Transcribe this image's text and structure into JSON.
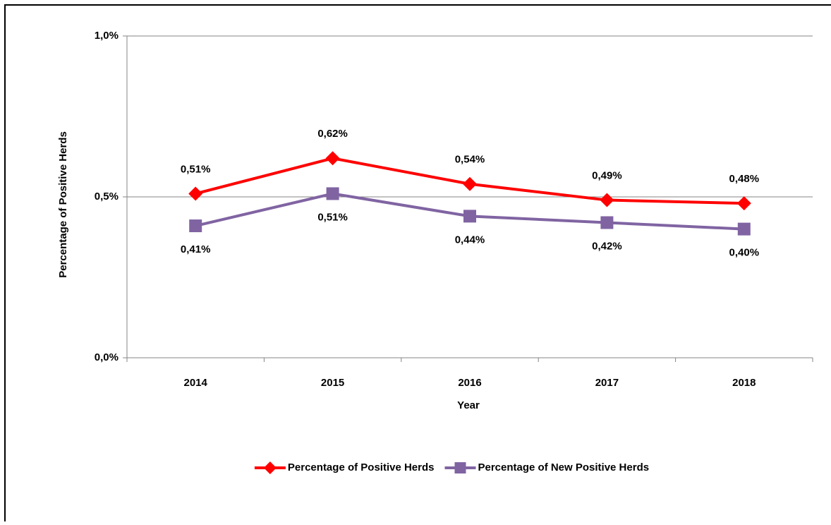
{
  "chart_data": {
    "type": "line",
    "x_label": "Year",
    "y_label": "Percentage of Positive Herds",
    "categories": [
      "2014",
      "2015",
      "2016",
      "2017",
      "2018"
    ],
    "series": [
      {
        "name": "Percentage of Positive Herds",
        "color": "#ff0000",
        "marker": "diamond",
        "values": [
          0.51,
          0.62,
          0.54,
          0.49,
          0.48
        ],
        "value_labels": [
          "0,51%",
          "0,62%",
          "0,54%",
          "0,49%",
          "0,48%"
        ]
      },
      {
        "name": "Percentage of New Positive Herds",
        "color": "#8064a2",
        "marker": "square",
        "values": [
          0.41,
          0.51,
          0.44,
          0.42,
          0.4
        ],
        "value_labels": [
          "0,41%",
          "0,51%",
          "0,44%",
          "0,42%",
          "0,40%"
        ]
      }
    ],
    "ylim": [
      0,
      1
    ],
    "yticks": [
      {
        "value": 0,
        "label": "0,0%"
      },
      {
        "value": 0.5,
        "label": "0,5%"
      },
      {
        "value": 1,
        "label": "1,0%"
      }
    ],
    "grid": true,
    "legend": "bottom"
  }
}
